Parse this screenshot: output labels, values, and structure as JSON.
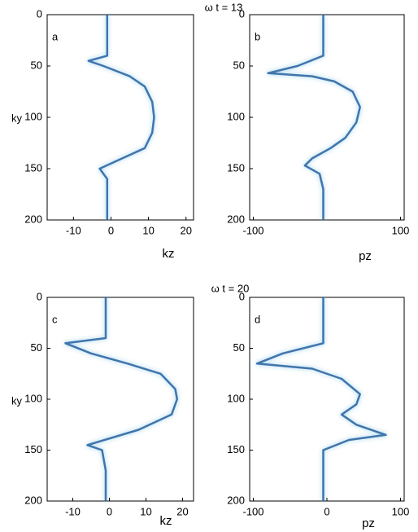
{
  "chart_data": [
    {
      "type": "line",
      "title": "ω t = 13",
      "panel": "a",
      "xlabel": "kz",
      "ylabel": "ky",
      "color": "#1f5e9e",
      "xlim": [
        -17,
        22
      ],
      "xticks": [
        -10,
        0,
        10,
        20
      ],
      "ylim": [
        0,
        200
      ],
      "yticks": [
        0,
        50,
        100,
        150,
        200
      ],
      "y_inverted": true,
      "x": [
        -1,
        -1,
        -6,
        -2,
        5,
        9,
        11,
        11.5,
        11,
        9,
        3,
        -3,
        -1,
        -1
      ],
      "values": [
        0,
        40,
        45,
        50,
        60,
        70,
        85,
        100,
        115,
        130,
        140,
        150,
        160,
        200
      ]
    },
    {
      "type": "line",
      "panel": "b",
      "xlabel": "pz",
      "color": "#1f5e9e",
      "xlim": [
        -105,
        105
      ],
      "xticks": [
        -100,
        100
      ],
      "ylim": [
        0,
        200
      ],
      "yticks": [
        0,
        50,
        100,
        150,
        200
      ],
      "y_inverted": true,
      "x": [
        -5,
        -5,
        -40,
        -80,
        -20,
        10,
        35,
        45,
        40,
        25,
        5,
        -20,
        -30,
        -10,
        -5,
        -5
      ],
      "values": [
        0,
        40,
        50,
        57,
        60,
        65,
        75,
        90,
        105,
        120,
        130,
        140,
        147,
        155,
        170,
        200
      ]
    },
    {
      "type": "line",
      "title": "ω t = 20",
      "panel": "c",
      "xlabel": "kz",
      "ylabel": "ky",
      "color": "#1f5e9e",
      "xlim": [
        -17,
        23
      ],
      "xticks": [
        -10,
        0,
        10,
        20
      ],
      "ylim": [
        0,
        200
      ],
      "yticks": [
        0,
        50,
        100,
        150,
        200
      ],
      "y_inverted": true,
      "x": [
        -1,
        -1,
        -12,
        -5,
        5,
        14,
        18,
        18.5,
        17,
        8,
        -6,
        -2,
        -1,
        -1
      ],
      "values": [
        0,
        40,
        45,
        55,
        65,
        75,
        90,
        100,
        115,
        130,
        145,
        150,
        170,
        200
      ]
    },
    {
      "type": "line",
      "panel": "d",
      "xlabel": "pz",
      "color": "#1f5e9e",
      "xlim": [
        -105,
        105
      ],
      "xticks": [
        -100,
        0,
        100
      ],
      "ylim": [
        0,
        200
      ],
      "yticks": [
        0,
        50,
        100,
        150,
        200
      ],
      "y_inverted": true,
      "x": [
        -5,
        -5,
        -60,
        -95,
        -20,
        20,
        45,
        40,
        20,
        40,
        80,
        30,
        -5,
        -5
      ],
      "values": [
        0,
        45,
        55,
        65,
        70,
        80,
        95,
        105,
        115,
        125,
        135,
        140,
        150,
        200
      ]
    }
  ]
}
